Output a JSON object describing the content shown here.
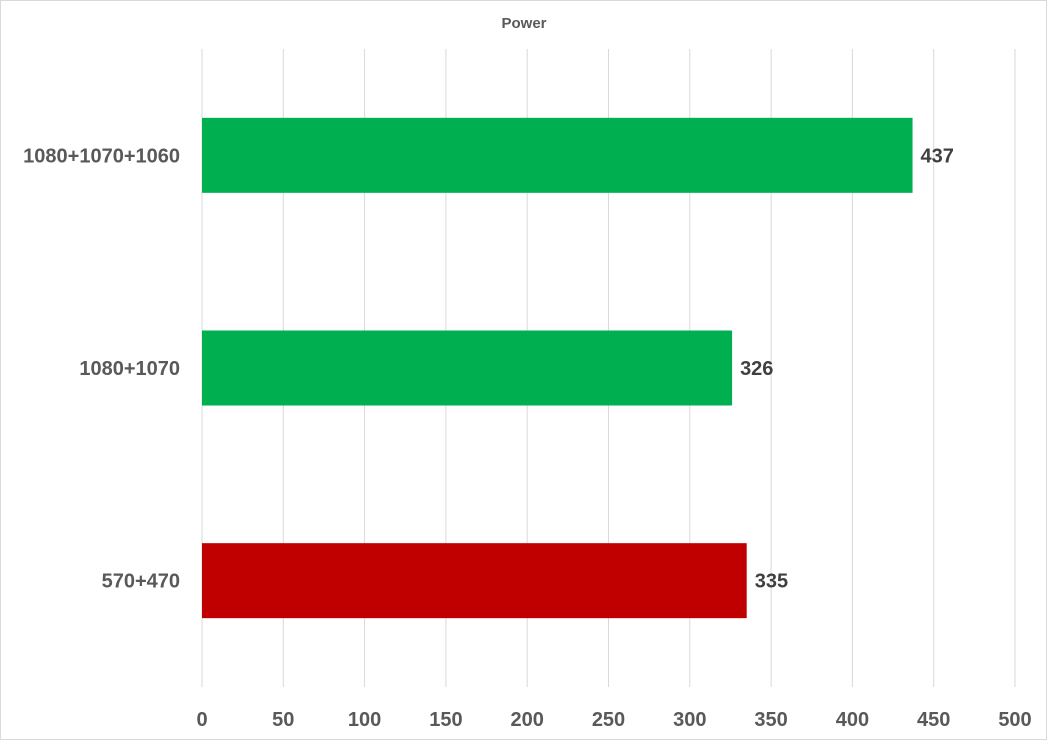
{
  "chart_data": {
    "type": "bar",
    "orientation": "horizontal",
    "title": "Power",
    "categories": [
      "1080+1070+1060",
      "1080+1070",
      "570+470"
    ],
    "values": [
      437,
      326,
      335
    ],
    "data_labels": [
      "437",
      "326",
      "335"
    ],
    "bar_colors": [
      "#00B050",
      "#00B050",
      "#C00000"
    ],
    "xlim": [
      0,
      500
    ],
    "x_ticks": [
      0,
      50,
      100,
      150,
      200,
      250,
      300,
      350,
      400,
      450,
      500
    ],
    "x_tick_labels": [
      "0",
      "50",
      "100",
      "150",
      "200",
      "250",
      "300",
      "350",
      "400",
      "450",
      "500"
    ],
    "grid": true,
    "legend": "none"
  }
}
